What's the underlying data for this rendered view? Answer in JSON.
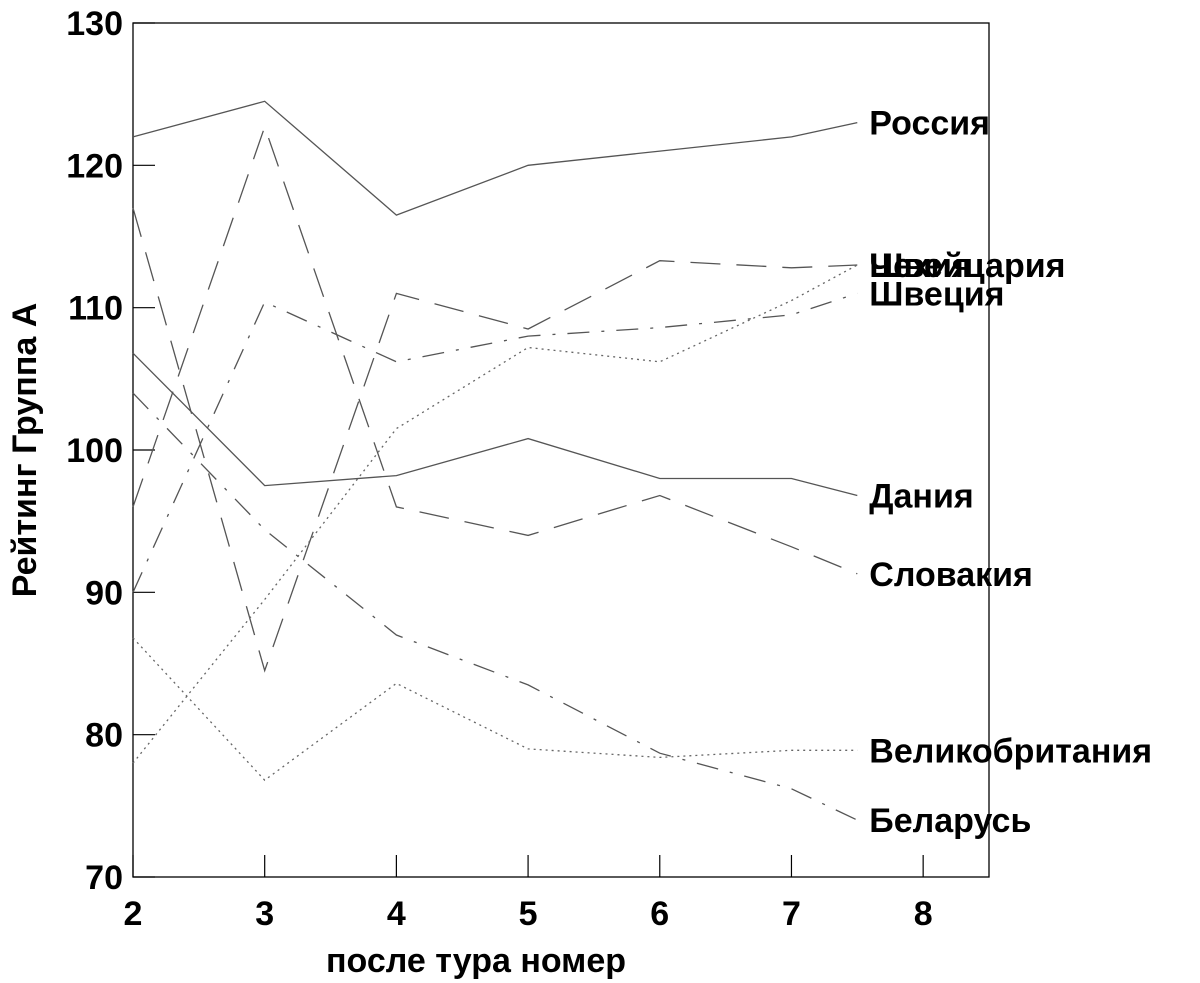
{
  "chart_data": {
    "type": "line",
    "title": "",
    "xlabel": "после тура номер",
    "ylabel": "Рейтинг Группа А",
    "xlim": [
      2,
      8.5
    ],
    "ylim": [
      70,
      130
    ],
    "x_ticks": [
      2,
      3,
      4,
      5,
      6,
      7,
      8
    ],
    "y_ticks": [
      70,
      80,
      90,
      100,
      110,
      120,
      130
    ],
    "grid": false,
    "legend": "inline-right",
    "series": [
      {
        "name": "Россия",
        "style": "solid",
        "x": [
          2,
          3,
          4,
          5,
          6,
          7,
          7.5
        ],
        "values": [
          122,
          124.5,
          116.5,
          120,
          121,
          122,
          123
        ]
      },
      {
        "name": "Швейцария",
        "style": "long-dash",
        "x": [
          2,
          3,
          4,
          5,
          6,
          7,
          7.5
        ],
        "values": [
          117,
          84.5,
          111,
          108.5,
          113.3,
          112.8,
          113
        ]
      },
      {
        "name": "Чехия",
        "style": "dotted",
        "x": [
          2,
          3,
          4,
          5,
          6,
          7,
          7.5
        ],
        "values": [
          78,
          89.5,
          101.5,
          107.2,
          106.2,
          110.5,
          113
        ]
      },
      {
        "name": "Швеция",
        "style": "dash-dot",
        "x": [
          2,
          3,
          4,
          5,
          6,
          7,
          7.5
        ],
        "values": [
          90,
          110.4,
          106.2,
          108,
          108.6,
          109.5,
          111
        ]
      },
      {
        "name": "Дания",
        "style": "solid",
        "x": [
          2,
          3,
          4,
          5,
          6,
          7,
          7.5
        ],
        "values": [
          106.8,
          97.5,
          98.2,
          100.8,
          98,
          98,
          96.8
        ]
      },
      {
        "name": "Словакия",
        "style": "long-dash",
        "x": [
          2,
          3,
          4,
          5,
          6,
          7,
          7.5
        ],
        "values": [
          96,
          122.7,
          96,
          94,
          96.8,
          93.2,
          91.3
        ]
      },
      {
        "name": "Великобритания",
        "style": "dotted",
        "x": [
          2,
          3,
          4,
          5,
          6,
          7,
          7.5
        ],
        "values": [
          86.8,
          76.8,
          83.6,
          79,
          78.4,
          78.9,
          78.9
        ]
      },
      {
        "name": "Беларусь",
        "style": "dash-dot",
        "x": [
          2,
          3,
          4,
          5,
          6,
          7,
          7.5
        ],
        "values": [
          104,
          94.4,
          87,
          83.5,
          78.7,
          76.2,
          74
        ]
      }
    ]
  }
}
